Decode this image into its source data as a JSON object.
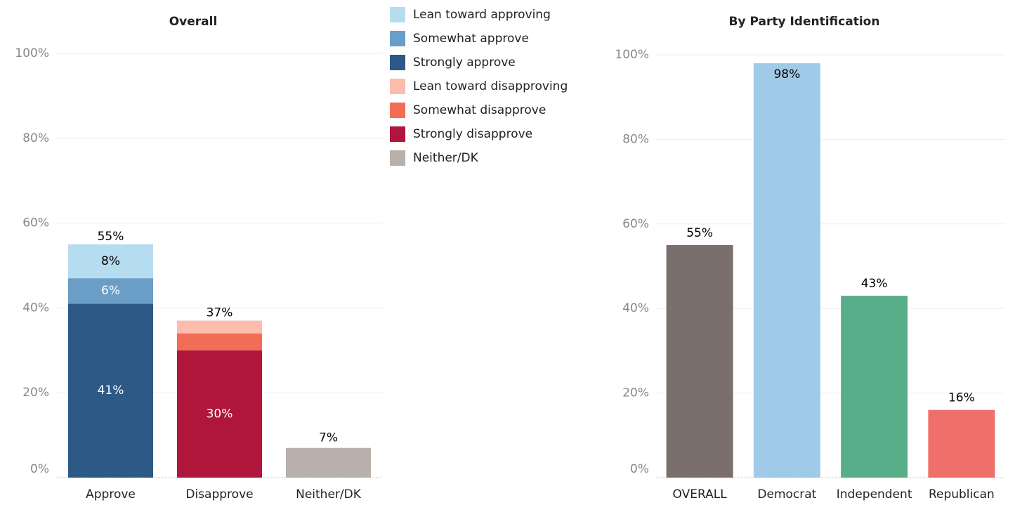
{
  "chart_data": [
    {
      "type": "stacked_bar",
      "title": "Overall",
      "categories": [
        "Approve",
        "Disapprove",
        "Neither/DK"
      ],
      "series": [
        {
          "name": "Lean toward approving",
          "color": "#b6dcf0",
          "label_color": "#000000",
          "values": [
            8,
            null,
            null
          ],
          "value_labels": [
            "8%",
            null,
            null
          ]
        },
        {
          "name": "Somewhat approve",
          "color": "#6a9ec7",
          "label_color": "#ffffff",
          "values": [
            6,
            null,
            null
          ],
          "value_labels": [
            "6%",
            null,
            null
          ]
        },
        {
          "name": "Strongly approve",
          "color": "#2c5985",
          "label_color": "#ffffff",
          "values": [
            41,
            null,
            null
          ],
          "value_labels": [
            "41%",
            null,
            null
          ]
        },
        {
          "name": "Lean toward disapproving",
          "color": "#fcbcae",
          "label_color": "#000000",
          "values": [
            null,
            3,
            null
          ],
          "value_labels": [
            null,
            null,
            null
          ]
        },
        {
          "name": "Somewhat disapprove",
          "color": "#f26c56",
          "label_color": "#ffffff",
          "values": [
            null,
            4,
            null
          ],
          "value_labels": [
            null,
            null,
            null
          ]
        },
        {
          "name": "Strongly disapprove",
          "color": "#b0153b",
          "label_color": "#ffffff",
          "values": [
            null,
            30,
            null
          ],
          "value_labels": [
            null,
            "30%",
            null
          ]
        },
        {
          "name": "Neither/DK",
          "color": "#bab0ab",
          "label_color": "#000000",
          "values": [
            null,
            null,
            7
          ],
          "value_labels": [
            null,
            null,
            "7%"
          ]
        }
      ],
      "totals": [
        55,
        37
      ],
      "total_labels": [
        "55%",
        "37%"
      ],
      "ylim": [
        0,
        100
      ],
      "yticks": [
        {
          "value": 0,
          "label": "0%"
        },
        {
          "value": 20,
          "label": "20%"
        },
        {
          "value": 40,
          "label": "40%"
        },
        {
          "value": 60,
          "label": "60%"
        },
        {
          "value": 80,
          "label": "80%"
        },
        {
          "value": 100,
          "label": "100%"
        }
      ],
      "grid": true
    },
    {
      "type": "bar",
      "title": "By Party Identification",
      "categories": [
        "OVERALL",
        "Democrat",
        "Independent",
        "Republican"
      ],
      "values": [
        55,
        98,
        43,
        16
      ],
      "value_labels": [
        "55%",
        "98%",
        "43%",
        "16%"
      ],
      "colors": [
        "#7a6f6b",
        "#a0cbe8",
        "#59ae8a",
        "#ef6f6a"
      ],
      "ylim": [
        0,
        100
      ],
      "yticks": [
        {
          "value": 0,
          "label": "0%"
        },
        {
          "value": 20,
          "label": "20%"
        },
        {
          "value": 40,
          "label": "40%"
        },
        {
          "value": 60,
          "label": "60%"
        },
        {
          "value": 80,
          "label": "80%"
        },
        {
          "value": 100,
          "label": "100%"
        }
      ],
      "grid": true
    }
  ]
}
